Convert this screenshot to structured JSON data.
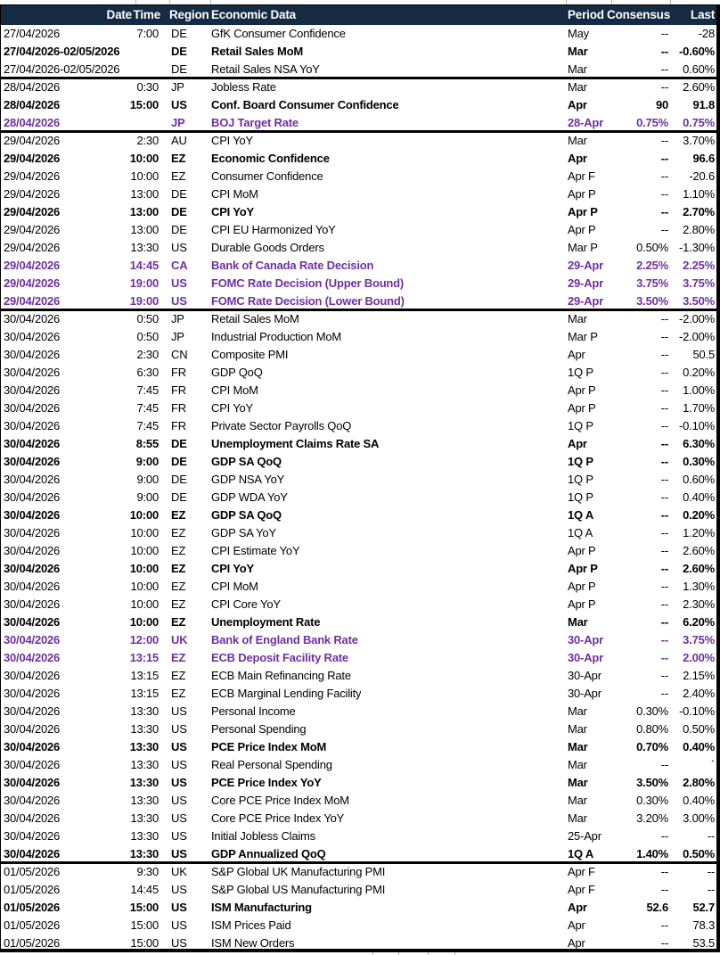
{
  "colors": {
    "header_bg": "#152A43",
    "header_text": "#FFFFFF",
    "highlight_purple": "#7030A0",
    "body_text": "#000000",
    "separator": "#000000"
  },
  "table": {
    "columns": {
      "date": "Date",
      "time": "Time",
      "region": "Region",
      "event": "Economic Data",
      "period": "Period",
      "consensus": "Consensus",
      "last": "Last"
    },
    "rows": [
      {
        "date": "27/04/2026",
        "time": "7:00",
        "region": "DE",
        "event": "GfK Consumer Confidence",
        "period": "May",
        "consensus": "--",
        "last": "-28",
        "style": "normal",
        "group_start": false
      },
      {
        "date": "27/04/2026-02/05/2026",
        "time": "",
        "region": "DE",
        "event": "Retail Sales MoM",
        "period": "Mar",
        "consensus": "--",
        "last": "-0.60%",
        "style": "bold",
        "group_start": false
      },
      {
        "date": "27/04/2026-02/05/2026",
        "time": "",
        "region": "DE",
        "event": "Retail Sales NSA YoY",
        "period": "Mar",
        "consensus": "--",
        "last": "0.60%",
        "style": "normal",
        "group_start": false
      },
      {
        "date": "28/04/2026",
        "time": "0:30",
        "region": "JP",
        "event": "Jobless Rate",
        "period": "Mar",
        "consensus": "--",
        "last": "2.60%",
        "style": "normal",
        "group_start": true
      },
      {
        "date": "28/04/2026",
        "time": "15:00",
        "region": "US",
        "event": "Conf. Board Consumer Confidence",
        "period": "Apr",
        "consensus": "90",
        "last": "91.8",
        "style": "bold",
        "group_start": false
      },
      {
        "date": "28/04/2026",
        "time": "",
        "region": "JP",
        "event": "BOJ Target Rate",
        "period": "28-Apr",
        "consensus": "0.75%",
        "last": "0.75%",
        "style": "purple",
        "group_start": false
      },
      {
        "date": "29/04/2026",
        "time": "2:30",
        "region": "AU",
        "event": "CPI YoY",
        "period": "Mar",
        "consensus": "--",
        "last": "3.70%",
        "style": "normal",
        "group_start": true
      },
      {
        "date": "29/04/2026",
        "time": "10:00",
        "region": "EZ",
        "event": "Economic Confidence",
        "period": "Apr",
        "consensus": "--",
        "last": "96.6",
        "style": "bold",
        "group_start": false
      },
      {
        "date": "29/04/2026",
        "time": "10:00",
        "region": "EZ",
        "event": "Consumer Confidence",
        "period": "Apr F",
        "consensus": "--",
        "last": "-20.6",
        "style": "normal",
        "group_start": false
      },
      {
        "date": "29/04/2026",
        "time": "13:00",
        "region": "DE",
        "event": "CPI MoM",
        "period": "Apr P",
        "consensus": "--",
        "last": "1.10%",
        "style": "normal",
        "group_start": false
      },
      {
        "date": "29/04/2026",
        "time": "13:00",
        "region": "DE",
        "event": "CPI YoY",
        "period": "Apr P",
        "consensus": "--",
        "last": "2.70%",
        "style": "bold",
        "group_start": false
      },
      {
        "date": "29/04/2026",
        "time": "13:00",
        "region": "DE",
        "event": "CPI EU Harmonized YoY",
        "period": "Apr P",
        "consensus": "--",
        "last": "2.80%",
        "style": "normal",
        "group_start": false
      },
      {
        "date": "29/04/2026",
        "time": "13:30",
        "region": "US",
        "event": "Durable Goods Orders",
        "period": "Mar P",
        "consensus": "0.50%",
        "last": "-1.30%",
        "style": "normal",
        "group_start": false
      },
      {
        "date": "29/04/2026",
        "time": "14:45",
        "region": "CA",
        "event": "Bank of Canada Rate Decision",
        "period": "29-Apr",
        "consensus": "2.25%",
        "last": "2.25%",
        "style": "purple",
        "group_start": false
      },
      {
        "date": "29/04/2026",
        "time": "19:00",
        "region": "US",
        "event": "FOMC Rate Decision (Upper Bound)",
        "period": "29-Apr",
        "consensus": "3.75%",
        "last": "3.75%",
        "style": "purple",
        "group_start": false
      },
      {
        "date": "29/04/2026",
        "time": "19:00",
        "region": "US",
        "event": "FOMC Rate Decision (Lower Bound)",
        "period": "29-Apr",
        "consensus": "3.50%",
        "last": "3.50%",
        "style": "purple",
        "group_start": false
      },
      {
        "date": "30/04/2026",
        "time": "0:50",
        "region": "JP",
        "event": "Retail Sales MoM",
        "period": "Mar",
        "consensus": "--",
        "last": "-2.00%",
        "style": "normal",
        "group_start": true
      },
      {
        "date": "30/04/2026",
        "time": "0:50",
        "region": "JP",
        "event": "Industrial Production MoM",
        "period": "Mar P",
        "consensus": "--",
        "last": "-2.00%",
        "style": "normal",
        "group_start": false
      },
      {
        "date": "30/04/2026",
        "time": "2:30",
        "region": "CN",
        "event": "Composite PMI",
        "period": "Apr",
        "consensus": "--",
        "last": "50.5",
        "style": "normal",
        "group_start": false
      },
      {
        "date": "30/04/2026",
        "time": "6:30",
        "region": "FR",
        "event": "GDP QoQ",
        "period": "1Q P",
        "consensus": "--",
        "last": "0.20%",
        "style": "normal",
        "group_start": false
      },
      {
        "date": "30/04/2026",
        "time": "7:45",
        "region": "FR",
        "event": "CPI MoM",
        "period": "Apr P",
        "consensus": "--",
        "last": "1.00%",
        "style": "normal",
        "group_start": false
      },
      {
        "date": "30/04/2026",
        "time": "7:45",
        "region": "FR",
        "event": "CPI YoY",
        "period": "Apr P",
        "consensus": "--",
        "last": "1.70%",
        "style": "normal",
        "group_start": false
      },
      {
        "date": "30/04/2026",
        "time": "7:45",
        "region": "FR",
        "event": "Private Sector Payrolls QoQ",
        "period": "1Q P",
        "consensus": "--",
        "last": "-0.10%",
        "style": "normal",
        "group_start": false
      },
      {
        "date": "30/04/2026",
        "time": "8:55",
        "region": "DE",
        "event": "Unemployment Claims Rate SA",
        "period": "Apr",
        "consensus": "--",
        "last": "6.30%",
        "style": "bold",
        "group_start": false
      },
      {
        "date": "30/04/2026",
        "time": "9:00",
        "region": "DE",
        "event": "GDP SA QoQ",
        "period": "1Q P",
        "consensus": "--",
        "last": "0.30%",
        "style": "bold",
        "group_start": false
      },
      {
        "date": "30/04/2026",
        "time": "9:00",
        "region": "DE",
        "event": "GDP NSA YoY",
        "period": "1Q P",
        "consensus": "--",
        "last": "0.60%",
        "style": "normal",
        "group_start": false
      },
      {
        "date": "30/04/2026",
        "time": "9:00",
        "region": "DE",
        "event": "GDP WDA YoY",
        "period": "1Q P",
        "consensus": "--",
        "last": "0.40%",
        "style": "normal",
        "group_start": false
      },
      {
        "date": "30/04/2026",
        "time": "10:00",
        "region": "EZ",
        "event": "GDP SA QoQ",
        "period": "1Q A",
        "consensus": "--",
        "last": "0.20%",
        "style": "bold",
        "group_start": false
      },
      {
        "date": "30/04/2026",
        "time": "10:00",
        "region": "EZ",
        "event": "GDP SA YoY",
        "period": "1Q A",
        "consensus": "--",
        "last": "1.20%",
        "style": "normal",
        "group_start": false
      },
      {
        "date": "30/04/2026",
        "time": "10:00",
        "region": "EZ",
        "event": "CPI Estimate YoY",
        "period": "Apr P",
        "consensus": "--",
        "last": "2.60%",
        "style": "normal",
        "group_start": false
      },
      {
        "date": "30/04/2026",
        "time": "10:00",
        "region": "EZ",
        "event": "CPI YoY",
        "period": "Apr P",
        "consensus": "--",
        "last": "2.60%",
        "style": "bold",
        "group_start": false
      },
      {
        "date": "30/04/2026",
        "time": "10:00",
        "region": "EZ",
        "event": "CPI MoM",
        "period": "Apr P",
        "consensus": "--",
        "last": "1.30%",
        "style": "normal",
        "group_start": false
      },
      {
        "date": "30/04/2026",
        "time": "10:00",
        "region": "EZ",
        "event": "CPI Core YoY",
        "period": "Apr P",
        "consensus": "--",
        "last": "2.30%",
        "style": "normal",
        "group_start": false
      },
      {
        "date": "30/04/2026",
        "time": "10:00",
        "region": "EZ",
        "event": "Unemployment Rate",
        "period": "Mar",
        "consensus": "--",
        "last": "6.20%",
        "style": "bold",
        "group_start": false
      },
      {
        "date": "30/04/2026",
        "time": "12:00",
        "region": "UK",
        "event": "Bank of England Bank Rate",
        "period": "30-Apr",
        "consensus": "--",
        "last": "3.75%",
        "style": "purple",
        "group_start": false
      },
      {
        "date": "30/04/2026",
        "time": "13:15",
        "region": "EZ",
        "event": "ECB Deposit Facility Rate",
        "period": "30-Apr",
        "consensus": "--",
        "last": "2.00%",
        "style": "purple",
        "group_start": false
      },
      {
        "date": "30/04/2026",
        "time": "13:15",
        "region": "EZ",
        "event": "ECB Main Refinancing Rate",
        "period": "30-Apr",
        "consensus": "--",
        "last": "2.15%",
        "style": "normal",
        "group_start": false
      },
      {
        "date": "30/04/2026",
        "time": "13:15",
        "region": "EZ",
        "event": "ECB Marginal Lending Facility",
        "period": "30-Apr",
        "consensus": "--",
        "last": "2.40%",
        "style": "normal",
        "group_start": false
      },
      {
        "date": "30/04/2026",
        "time": "13:30",
        "region": "US",
        "event": "Personal Income",
        "period": "Mar",
        "consensus": "0.30%",
        "last": "-0.10%",
        "style": "normal",
        "group_start": false
      },
      {
        "date": "30/04/2026",
        "time": "13:30",
        "region": "US",
        "event": "Personal Spending",
        "period": "Mar",
        "consensus": "0.80%",
        "last": "0.50%",
        "style": "normal",
        "group_start": false
      },
      {
        "date": "30/04/2026",
        "time": "13:30",
        "region": "US",
        "event": "PCE Price Index MoM",
        "period": "Mar",
        "consensus": "0.70%",
        "last": "0.40%",
        "style": "bold",
        "group_start": false
      },
      {
        "date": "30/04/2026",
        "time": "13:30",
        "region": "US",
        "event": "Real Personal Spending",
        "period": "Mar",
        "consensus": "--",
        "last": "`",
        "style": "normal",
        "group_start": false
      },
      {
        "date": "30/04/2026",
        "time": "13:30",
        "region": "US",
        "event": "PCE Price Index YoY",
        "period": "Mar",
        "consensus": "3.50%",
        "last": "2.80%",
        "style": "bold",
        "group_start": false
      },
      {
        "date": "30/04/2026",
        "time": "13:30",
        "region": "US",
        "event": "Core PCE Price Index MoM",
        "period": "Mar",
        "consensus": "0.30%",
        "last": "0.40%",
        "style": "normal",
        "group_start": false
      },
      {
        "date": "30/04/2026",
        "time": "13:30",
        "region": "US",
        "event": "Core PCE Price Index YoY",
        "period": "Mar",
        "consensus": "3.20%",
        "last": "3.00%",
        "style": "normal",
        "group_start": false
      },
      {
        "date": "30/04/2026",
        "time": "13:30",
        "region": "US",
        "event": "Initial Jobless Claims",
        "period": "25-Apr",
        "consensus": "--",
        "last": "--",
        "style": "normal",
        "group_start": false
      },
      {
        "date": "30/04/2026",
        "time": "13:30",
        "region": "US",
        "event": "GDP Annualized QoQ",
        "period": "1Q A",
        "consensus": "1.40%",
        "last": "0.50%",
        "style": "bold",
        "group_start": false
      },
      {
        "date": "01/05/2026",
        "time": "9:30",
        "region": "UK",
        "event": "S&P Global UK Manufacturing PMI",
        "period": "Apr F",
        "consensus": "--",
        "last": "--",
        "style": "normal",
        "group_start": true
      },
      {
        "date": "01/05/2026",
        "time": "14:45",
        "region": "US",
        "event": "S&P Global US Manufacturing PMI",
        "period": "Apr F",
        "consensus": "--",
        "last": "--",
        "style": "normal",
        "group_start": false
      },
      {
        "date": "01/05/2026",
        "time": "15:00",
        "region": "US",
        "event": "ISM Manufacturing",
        "period": "Apr",
        "consensus": "52.6",
        "last": "52.7",
        "style": "bold",
        "group_start": false
      },
      {
        "date": "01/05/2026",
        "time": "15:00",
        "region": "US",
        "event": "ISM Prices Paid",
        "period": "Apr",
        "consensus": "--",
        "last": "78.3",
        "style": "normal",
        "group_start": false
      },
      {
        "date": "01/05/2026",
        "time": "15:00",
        "region": "US",
        "event": "ISM New Orders",
        "period": "Apr",
        "consensus": "--",
        "last": "53.5",
        "style": "normal",
        "group_start": false
      }
    ]
  }
}
